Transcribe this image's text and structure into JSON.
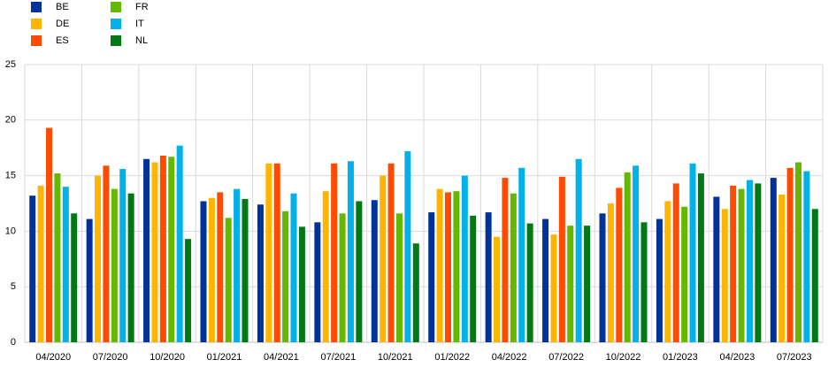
{
  "chart_data": {
    "type": "bar",
    "categories": [
      "04/2020",
      "07/2020",
      "10/2020",
      "01/2021",
      "04/2021",
      "07/2021",
      "10/2021",
      "01/2022",
      "04/2022",
      "07/2022",
      "10/2022",
      "01/2023",
      "04/2023",
      "07/2023"
    ],
    "series": [
      {
        "name": "BE",
        "color": "#003299",
        "values": [
          13.2,
          11.1,
          16.5,
          12.7,
          12.4,
          10.8,
          12.8,
          11.7,
          11.7,
          11.1,
          11.6,
          11.1,
          13.1,
          14.8
        ]
      },
      {
        "name": "DE",
        "color": "#ffb400",
        "values": [
          14.1,
          15.0,
          16.2,
          13.0,
          16.1,
          13.6,
          15.0,
          13.8,
          9.5,
          9.7,
          12.5,
          12.7,
          12.0,
          13.3
        ]
      },
      {
        "name": "ES",
        "color": "#ff4b00",
        "values": [
          19.3,
          15.9,
          16.8,
          13.5,
          16.1,
          16.1,
          16.1,
          13.5,
          14.8,
          14.9,
          13.9,
          14.3,
          14.1,
          15.7
        ]
      },
      {
        "name": "FR",
        "color": "#65b800",
        "values": [
          15.2,
          13.8,
          16.7,
          11.2,
          11.8,
          11.6,
          11.6,
          13.6,
          13.4,
          10.5,
          15.3,
          12.2,
          13.8,
          16.2
        ]
      },
      {
        "name": "IT",
        "color": "#00b1ea",
        "values": [
          14.0,
          15.6,
          17.7,
          13.8,
          13.4,
          16.3,
          17.2,
          15.0,
          15.7,
          16.5,
          15.9,
          16.1,
          14.6,
          15.4
        ]
      },
      {
        "name": "NL",
        "color": "#007816",
        "values": [
          11.6,
          13.4,
          9.3,
          12.9,
          10.4,
          12.7,
          8.9,
          11.4,
          10.7,
          10.5,
          10.8,
          15.2,
          14.3,
          12.0
        ]
      }
    ],
    "ylim": [
      0,
      25
    ],
    "yticks": [
      0,
      5,
      10,
      15,
      20,
      25
    ],
    "grid": true,
    "legend": "top-left"
  }
}
